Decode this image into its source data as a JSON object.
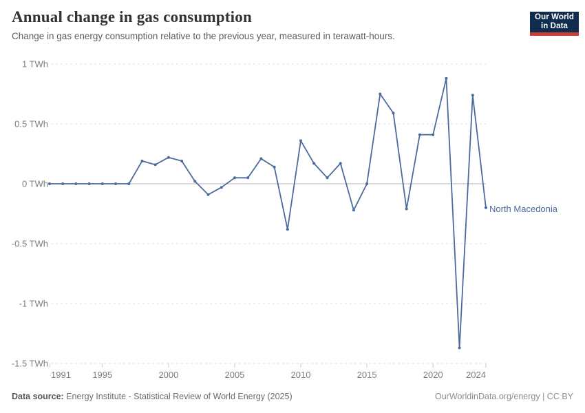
{
  "header": {
    "title": "Annual change in gas consumption",
    "subtitle": "Change in gas energy consumption relative to the previous year, measured in terawatt-hours.",
    "logo": {
      "line1": "Our World",
      "line2": "in Data"
    }
  },
  "chart_data": {
    "type": "line",
    "title": "Annual change in gas consumption",
    "unit": "TWh",
    "xlim": [
      1991,
      2024
    ],
    "ylim": [
      -1.5,
      1
    ],
    "grid": "horizontal-dashed",
    "legend_position": "end-of-line-label",
    "x_ticks": [
      1991,
      1995,
      2000,
      2005,
      2010,
      2015,
      2020,
      2024
    ],
    "y_ticks": [
      {
        "value": 1,
        "label": "1 TWh"
      },
      {
        "value": 0.5,
        "label": "0.5 TWh"
      },
      {
        "value": 0,
        "label": "0 TWh"
      },
      {
        "value": -0.5,
        "label": "-0.5 TWh"
      },
      {
        "value": -1,
        "label": "-1 TWh"
      },
      {
        "value": -1.5,
        "label": "-1.5 TWh"
      }
    ],
    "series": [
      {
        "name": "North Macedonia",
        "color": "#4c6a9c",
        "x": [
          1991,
          1992,
          1993,
          1994,
          1995,
          1996,
          1997,
          1998,
          1999,
          2000,
          2001,
          2002,
          2003,
          2004,
          2005,
          2006,
          2007,
          2008,
          2009,
          2010,
          2011,
          2012,
          2013,
          2014,
          2015,
          2016,
          2017,
          2018,
          2019,
          2020,
          2021,
          2022,
          2023,
          2024
        ],
        "values": [
          0,
          0,
          0,
          0,
          0,
          0,
          0,
          0.19,
          0.16,
          0.22,
          0.19,
          0.02,
          -0.09,
          -0.03,
          0.05,
          0.05,
          0.21,
          0.14,
          -0.38,
          0.36,
          0.17,
          0.05,
          0.17,
          -0.22,
          0,
          0.75,
          0.59,
          -0.21,
          0.41,
          0.41,
          0.88,
          -1.37,
          0.74,
          -0.2
        ]
      }
    ]
  },
  "footer": {
    "source_label": "Data source:",
    "source_text": "Energy Institute - Statistical Review of World Energy (2025)",
    "credit": "OurWorldinData.org/energy | CC BY"
  },
  "colors": {
    "line": "#4c6a9c",
    "grid": "#dcdcdc",
    "zero_line": "#b7b7b7",
    "tick": "#c9c9c9",
    "axis_text": "#7d7d7d",
    "logo_navy": "#102d50",
    "logo_red": "#cc3b34"
  }
}
